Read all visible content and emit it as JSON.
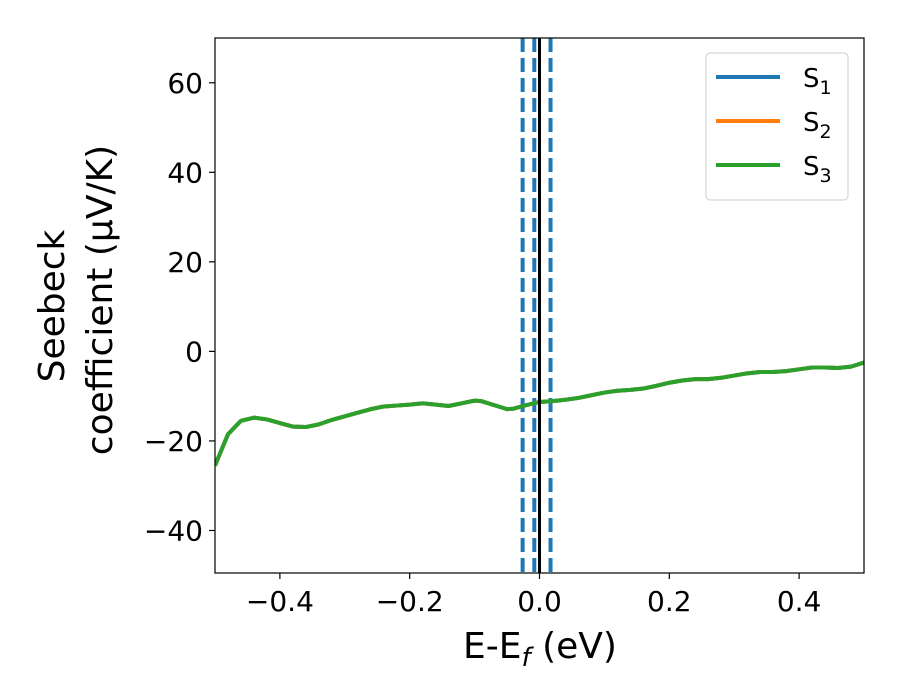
{
  "chart_data": {
    "type": "line",
    "title": "",
    "xlabel": "E-E",
    "xlabel_sub": "f",
    "xlabel_unit": " (eV)",
    "ylabel_line1": "Seebeck",
    "ylabel_line2": "coefficient  (μV/K)",
    "xlim": [
      -0.5,
      0.5
    ],
    "ylim": [
      -49.5,
      70
    ],
    "xticks": [
      -0.4,
      -0.2,
      0.0,
      0.2,
      0.4
    ],
    "xtick_labels": [
      "−0.4",
      "−0.2",
      "0.0",
      "0.2",
      "0.4"
    ],
    "yticks": [
      -40,
      -20,
      0,
      20,
      40,
      60
    ],
    "ytick_labels": [
      "−40",
      "−20",
      "0",
      "20",
      "40",
      "60"
    ],
    "grid": false,
    "legend_position": "top-right",
    "x": [
      -0.5,
      -0.48,
      -0.46,
      -0.44,
      -0.42,
      -0.4,
      -0.38,
      -0.36,
      -0.34,
      -0.32,
      -0.3,
      -0.28,
      -0.26,
      -0.24,
      -0.22,
      -0.2,
      -0.18,
      -0.16,
      -0.14,
      -0.12,
      -0.1,
      -0.09,
      -0.07,
      -0.05,
      -0.04,
      -0.02,
      0.0,
      0.02,
      0.04,
      0.06,
      0.08,
      0.1,
      0.12,
      0.14,
      0.16,
      0.18,
      0.2,
      0.22,
      0.24,
      0.26,
      0.28,
      0.3,
      0.32,
      0.34,
      0.36,
      0.38,
      0.4,
      0.42,
      0.44,
      0.46,
      0.48,
      0.5
    ],
    "series": [
      {
        "name": "S",
        "name_sub": "1",
        "color": "#1f77b4",
        "values": [
          -25.5,
          -18.5,
          -15.5,
          -14.8,
          -15.2,
          -16.0,
          -16.8,
          -16.9,
          -16.3,
          -15.3,
          -14.5,
          -13.7,
          -12.9,
          -12.3,
          -12.1,
          -11.9,
          -11.6,
          -11.9,
          -12.2,
          -11.6,
          -11.0,
          -11.1,
          -12.0,
          -12.9,
          -12.8,
          -12.0,
          -11.3,
          -11.1,
          -10.8,
          -10.4,
          -9.8,
          -9.2,
          -8.8,
          -8.6,
          -8.3,
          -7.7,
          -7.0,
          -6.5,
          -6.2,
          -6.2,
          -5.9,
          -5.4,
          -4.9,
          -4.6,
          -4.6,
          -4.4,
          -4.0,
          -3.6,
          -3.6,
          -3.7,
          -3.4,
          -2.5
        ]
      },
      {
        "name": "S",
        "name_sub": "2",
        "color": "#ff7f0e",
        "values": [
          -25.5,
          -18.5,
          -15.5,
          -14.8,
          -15.2,
          -16.0,
          -16.8,
          -16.9,
          -16.3,
          -15.3,
          -14.5,
          -13.7,
          -12.9,
          -12.3,
          -12.1,
          -11.9,
          -11.6,
          -11.9,
          -12.2,
          -11.6,
          -11.0,
          -11.1,
          -12.0,
          -12.9,
          -12.8,
          -12.0,
          -11.3,
          -11.1,
          -10.8,
          -10.4,
          -9.8,
          -9.2,
          -8.8,
          -8.6,
          -8.3,
          -7.7,
          -7.0,
          -6.5,
          -6.2,
          -6.2,
          -5.9,
          -5.4,
          -4.9,
          -4.6,
          -4.6,
          -4.4,
          -4.0,
          -3.6,
          -3.6,
          -3.7,
          -3.4,
          -2.5
        ]
      },
      {
        "name": "S",
        "name_sub": "3",
        "color": "#2ca02c",
        "values": [
          -25.5,
          -18.5,
          -15.5,
          -14.8,
          -15.2,
          -16.0,
          -16.8,
          -16.9,
          -16.3,
          -15.3,
          -14.5,
          -13.7,
          -12.9,
          -12.3,
          -12.1,
          -11.9,
          -11.6,
          -11.9,
          -12.2,
          -11.6,
          -11.0,
          -11.1,
          -12.0,
          -12.9,
          -12.8,
          -12.0,
          -11.3,
          -11.1,
          -10.8,
          -10.4,
          -9.8,
          -9.2,
          -8.8,
          -8.6,
          -8.3,
          -7.7,
          -7.0,
          -6.5,
          -6.2,
          -6.2,
          -5.9,
          -5.4,
          -4.9,
          -4.6,
          -4.6,
          -4.4,
          -4.0,
          -3.6,
          -3.6,
          -3.7,
          -3.4,
          -2.5
        ]
      }
    ],
    "vlines": [
      {
        "x": -0.026,
        "color": "#1f77b4",
        "style": "dashed"
      },
      {
        "x": 0.0,
        "color": "#000000",
        "style": "solid"
      },
      {
        "x": -0.008,
        "color": "#1f77b4",
        "style": "dashed"
      },
      {
        "x": 0.017,
        "color": "#1f77b4",
        "style": "dashed"
      }
    ]
  }
}
